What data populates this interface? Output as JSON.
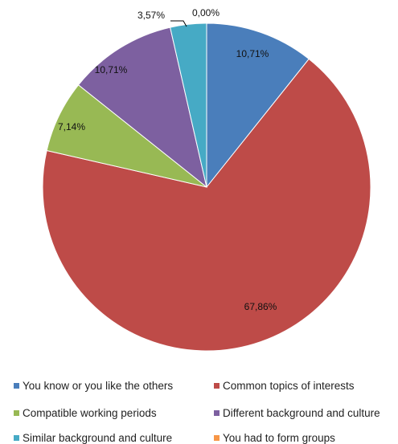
{
  "chart_data": {
    "type": "pie",
    "title": "",
    "start_angle_deg": 0,
    "direction": "clockwise",
    "slices": [
      {
        "name": "You know  or you like the others",
        "value": 10.71,
        "label": "10,71%",
        "color": "#4a7ebb"
      },
      {
        "name": "Common topics of interests",
        "value": 67.86,
        "label": "67,86%",
        "color": "#be4b48"
      },
      {
        "name": "Compatible working periods",
        "value": 7.14,
        "label": "7,14%",
        "color": "#98b954"
      },
      {
        "name": "Different background and culture",
        "value": 10.71,
        "label": "10,71%",
        "color": "#7d60a0"
      },
      {
        "name": "Similar background and culture",
        "value": 3.57,
        "label": "3,57%",
        "color": "#46aac5"
      },
      {
        "name": "You had to form groups",
        "value": 0.0,
        "label": "0,00%",
        "color": "#f79646"
      }
    ],
    "legend_position": "bottom"
  }
}
